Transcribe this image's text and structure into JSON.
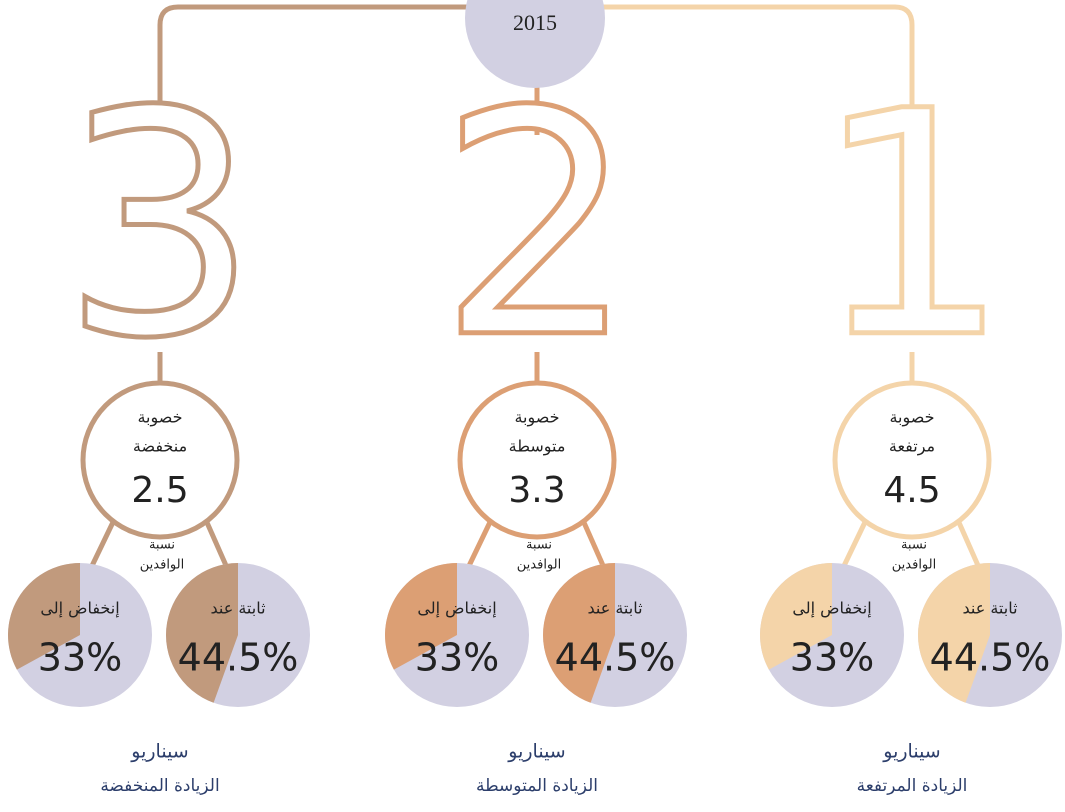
{
  "header": {
    "year": "2015"
  },
  "scenarios": [
    {
      "digit": "3",
      "line1": "خصوبة",
      "line2": "منخفضة",
      "fertility": 2.5,
      "ratio1": "نسبة",
      "ratio2": "الوافدين",
      "pies": [
        {
          "label": "إنخفاض إلى",
          "value": 33,
          "value_label": "33%"
        },
        {
          "label": "ثابتة عند",
          "value": 44.5,
          "value_label": "44.5%"
        }
      ],
      "title": "سيناريو",
      "subtitle": "الزيادة المنخفضة",
      "color": "#c19a7d"
    },
    {
      "digit": "2",
      "line1": "خصوبة",
      "line2": "متوسطة",
      "fertility": 3.3,
      "ratio1": "نسبة",
      "ratio2": "الوافدين",
      "pies": [
        {
          "label": "إنخفاض إلى",
          "value": 33,
          "value_label": "33%"
        },
        {
          "label": "ثابتة عند",
          "value": 44.5,
          "value_label": "44.5%"
        }
      ],
      "title": "سيناريو",
      "subtitle": "الزيادة المتوسطة",
      "color": "#dc9f74"
    },
    {
      "digit": "1",
      "line1": "خصوبة",
      "line2": "مرتفعة",
      "fertility": 4.5,
      "ratio1": "نسبة",
      "ratio2": "الوافدين",
      "pies": [
        {
          "label": "إنخفاض إلى",
          "value": 33,
          "value_label": "33%"
        },
        {
          "label": "ثابتة عند",
          "value": 44.5,
          "value_label": "44.5%"
        }
      ],
      "title": "سيناريو",
      "subtitle": "الزيادة المرتفعة",
      "color": "#f4d4a9"
    }
  ]
}
